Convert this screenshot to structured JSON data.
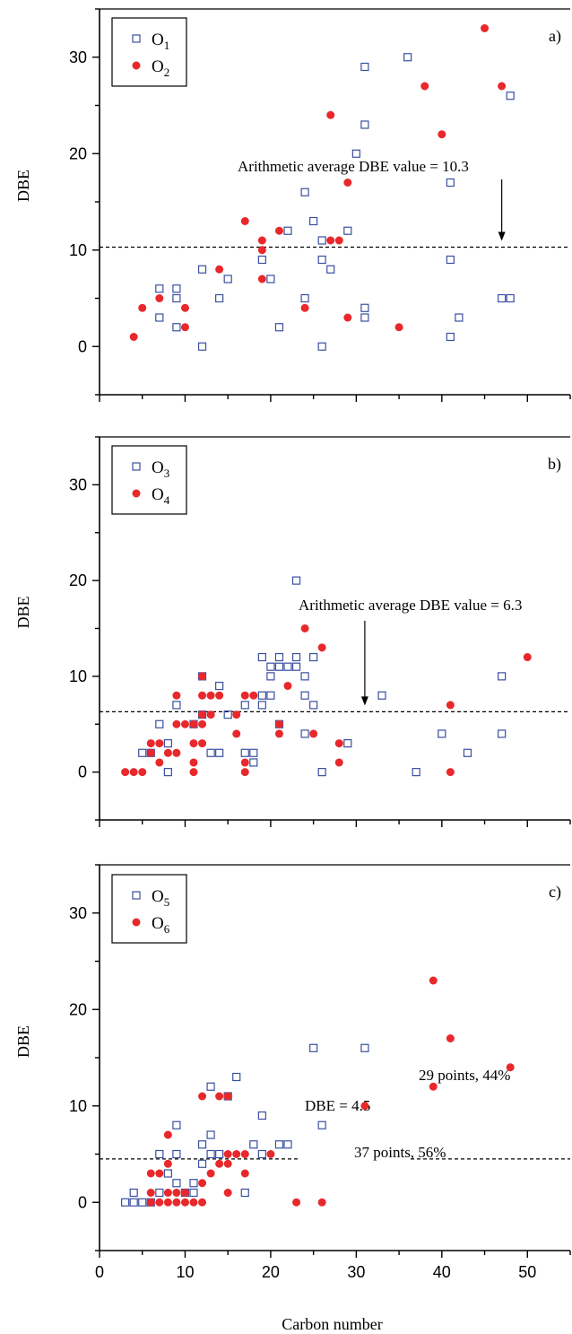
{
  "chart_data": [
    {
      "type": "scatter",
      "panel_label": "a)",
      "ylabel": "DBE",
      "xlim": [
        0,
        55
      ],
      "ylim": [
        -5,
        35
      ],
      "yticks": [
        0,
        10,
        20,
        30
      ],
      "average_line": {
        "y": 10.3,
        "label": "Arithmetic average DBE value = 10.3",
        "arrow_x": 47
      },
      "series": [
        {
          "name": "O1",
          "name_main": "O",
          "name_sub": "1",
          "marker": "open-square",
          "color": "#3a4fa0",
          "points": [
            [
              7,
              6
            ],
            [
              7,
              3
            ],
            [
              9,
              6
            ],
            [
              9,
              5
            ],
            [
              9,
              2
            ],
            [
              12,
              8
            ],
            [
              12,
              0
            ],
            [
              14,
              5
            ],
            [
              15,
              7
            ],
            [
              19,
              9
            ],
            [
              20,
              7
            ],
            [
              21,
              2
            ],
            [
              22,
              12
            ],
            [
              24,
              16
            ],
            [
              24,
              5
            ],
            [
              25,
              13
            ],
            [
              26,
              11
            ],
            [
              26,
              9
            ],
            [
              26,
              0
            ],
            [
              27,
              8
            ],
            [
              29,
              12
            ],
            [
              30,
              20
            ],
            [
              31,
              29
            ],
            [
              31,
              23
            ],
            [
              31,
              4
            ],
            [
              31,
              3
            ],
            [
              36,
              30
            ],
            [
              41,
              17
            ],
            [
              41,
              9
            ],
            [
              41,
              1
            ],
            [
              42,
              3
            ],
            [
              47,
              5
            ],
            [
              48,
              26
            ],
            [
              48,
              5
            ]
          ]
        },
        {
          "name": "O2",
          "name_main": "O",
          "name_sub": "2",
          "marker": "filled-circle",
          "color": "#e8282b",
          "points": [
            [
              4,
              1
            ],
            [
              5,
              4
            ],
            [
              7,
              5
            ],
            [
              10,
              4
            ],
            [
              10,
              2
            ],
            [
              14,
              8
            ],
            [
              17,
              13
            ],
            [
              19,
              11
            ],
            [
              19,
              10
            ],
            [
              19,
              7
            ],
            [
              21,
              12
            ],
            [
              24,
              4
            ],
            [
              27,
              24
            ],
            [
              27,
              11
            ],
            [
              28,
              11
            ],
            [
              29,
              17
            ],
            [
              29,
              3
            ],
            [
              35,
              2
            ],
            [
              38,
              27
            ],
            [
              40,
              22
            ],
            [
              45,
              33
            ],
            [
              47,
              27
            ]
          ]
        }
      ]
    },
    {
      "type": "scatter",
      "panel_label": "b)",
      "ylabel": "DBE",
      "xlim": [
        0,
        55
      ],
      "ylim": [
        -5,
        35
      ],
      "yticks": [
        0,
        10,
        20,
        30
      ],
      "average_line": {
        "y": 6.3,
        "label": "Arithmetic average DBE value = 6.3",
        "arrow_x": 31
      },
      "series": [
        {
          "name": "O3",
          "name_main": "O",
          "name_sub": "3",
          "marker": "open-square",
          "color": "#3a4fa0",
          "points": [
            [
              5,
              2
            ],
            [
              6,
              2
            ],
            [
              7,
              5
            ],
            [
              8,
              3
            ],
            [
              8,
              0
            ],
            [
              9,
              7
            ],
            [
              11,
              5
            ],
            [
              12,
              6
            ],
            [
              12,
              10
            ],
            [
              13,
              2
            ],
            [
              14,
              2
            ],
            [
              14,
              9
            ],
            [
              15,
              6
            ],
            [
              17,
              7
            ],
            [
              17,
              2
            ],
            [
              18,
              2
            ],
            [
              18,
              1
            ],
            [
              19,
              12
            ],
            [
              19,
              8
            ],
            [
              19,
              7
            ],
            [
              20,
              11
            ],
            [
              20,
              10
            ],
            [
              20,
              8
            ],
            [
              21,
              12
            ],
            [
              21,
              11
            ],
            [
              21,
              5
            ],
            [
              22,
              11
            ],
            [
              23,
              12
            ],
            [
              23,
              11
            ],
            [
              23,
              20
            ],
            [
              24,
              10
            ],
            [
              24,
              8
            ],
            [
              24,
              4
            ],
            [
              25,
              12
            ],
            [
              25,
              7
            ],
            [
              26,
              0
            ],
            [
              29,
              3
            ],
            [
              33,
              8
            ],
            [
              37,
              0
            ],
            [
              40,
              4
            ],
            [
              43,
              2
            ],
            [
              47,
              10
            ],
            [
              47,
              4
            ]
          ]
        },
        {
          "name": "O4",
          "name_main": "O",
          "name_sub": "4",
          "marker": "filled-circle",
          "color": "#e8282b",
          "points": [
            [
              3,
              0
            ],
            [
              4,
              0
            ],
            [
              5,
              0
            ],
            [
              6,
              3
            ],
            [
              6,
              2
            ],
            [
              7,
              3
            ],
            [
              7,
              1
            ],
            [
              8,
              2
            ],
            [
              9,
              8
            ],
            [
              9,
              5
            ],
            [
              9,
              2
            ],
            [
              10,
              5
            ],
            [
              11,
              5
            ],
            [
              11,
              3
            ],
            [
              11,
              1
            ],
            [
              11,
              0
            ],
            [
              12,
              10
            ],
            [
              12,
              8
            ],
            [
              12,
              6
            ],
            [
              12,
              5
            ],
            [
              12,
              3
            ],
            [
              13,
              8
            ],
            [
              13,
              6
            ],
            [
              14,
              8
            ],
            [
              16,
              6
            ],
            [
              16,
              4
            ],
            [
              17,
              8
            ],
            [
              17,
              1
            ],
            [
              17,
              0
            ],
            [
              18,
              8
            ],
            [
              21,
              5
            ],
            [
              21,
              4
            ],
            [
              22,
              9
            ],
            [
              24,
              15
            ],
            [
              25,
              4
            ],
            [
              26,
              13
            ],
            [
              28,
              3
            ],
            [
              28,
              1
            ],
            [
              41,
              7
            ],
            [
              41,
              0
            ],
            [
              50,
              12
            ]
          ]
        }
      ]
    },
    {
      "type": "scatter",
      "panel_label": "c)",
      "ylabel": "DBE",
      "xlabel": "Carbon number",
      "xlim": [
        0,
        55
      ],
      "ylim": [
        -5,
        35
      ],
      "xticks": [
        0,
        10,
        20,
        30,
        40,
        50
      ],
      "yticks": [
        0,
        10,
        20,
        30
      ],
      "average_line": {
        "y": 4.5,
        "label": "DBE = 4.5"
      },
      "annotations": [
        "29 points, 44%",
        "37 points, 56%"
      ],
      "series": [
        {
          "name": "O5",
          "name_main": "O",
          "name_sub": "5",
          "marker": "open-square",
          "color": "#3a4fa0",
          "points": [
            [
              3,
              0
            ],
            [
              4,
              0
            ],
            [
              4,
              1
            ],
            [
              5,
              0
            ],
            [
              6,
              0
            ],
            [
              7,
              1
            ],
            [
              7,
              5
            ],
            [
              8,
              3
            ],
            [
              9,
              8
            ],
            [
              9,
              5
            ],
            [
              9,
              2
            ],
            [
              10,
              1
            ],
            [
              11,
              2
            ],
            [
              11,
              1
            ],
            [
              12,
              6
            ],
            [
              12,
              4
            ],
            [
              13,
              12
            ],
            [
              13,
              7
            ],
            [
              13,
              5
            ],
            [
              14,
              5
            ],
            [
              15,
              11
            ],
            [
              16,
              13
            ],
            [
              17,
              1
            ],
            [
              18,
              6
            ],
            [
              19,
              9
            ],
            [
              19,
              5
            ],
            [
              21,
              6
            ],
            [
              22,
              6
            ],
            [
              25,
              16
            ],
            [
              26,
              8
            ],
            [
              31,
              16
            ]
          ]
        },
        {
          "name": "O6",
          "name_main": "O",
          "name_sub": "6",
          "marker": "filled-circle",
          "color": "#e8282b",
          "points": [
            [
              6,
              3
            ],
            [
              6,
              1
            ],
            [
              6,
              0
            ],
            [
              7,
              3
            ],
            [
              7,
              0
            ],
            [
              8,
              7
            ],
            [
              8,
              4
            ],
            [
              8,
              1
            ],
            [
              8,
              0
            ],
            [
              9,
              1
            ],
            [
              9,
              0
            ],
            [
              10,
              1
            ],
            [
              10,
              0
            ],
            [
              11,
              0
            ],
            [
              12,
              11
            ],
            [
              12,
              2
            ],
            [
              12,
              0
            ],
            [
              13,
              3
            ],
            [
              14,
              4
            ],
            [
              14,
              11
            ],
            [
              15,
              11
            ],
            [
              15,
              5
            ],
            [
              15,
              4
            ],
            [
              15,
              1
            ],
            [
              16,
              5
            ],
            [
              17,
              5
            ],
            [
              17,
              3
            ],
            [
              20,
              5
            ],
            [
              23,
              0
            ],
            [
              26,
              0
            ],
            [
              31,
              10
            ],
            [
              39,
              23
            ],
            [
              39,
              12
            ],
            [
              41,
              17
            ],
            [
              48,
              14
            ]
          ]
        }
      ]
    }
  ]
}
